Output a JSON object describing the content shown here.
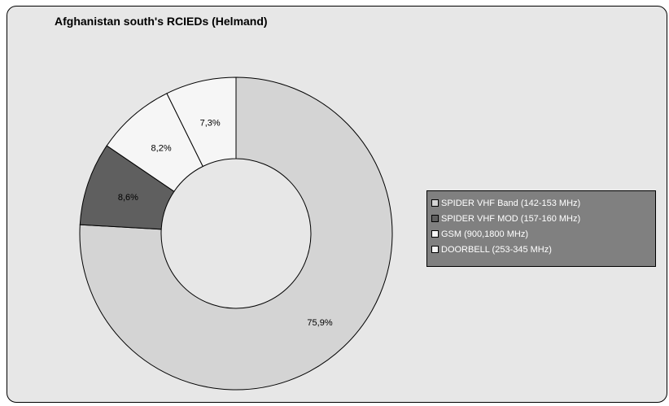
{
  "chart_data": {
    "type": "pie",
    "style": "donut",
    "title": "Afghanistan south's RCIEDs (Helmand)",
    "series": [
      {
        "name": "SPIDER VHF Band (142-153 MHz)",
        "value": 75.9,
        "label": "75,9%",
        "color": "#d4d4d4"
      },
      {
        "name": "SPIDER VHF MOD (157-160 MHz)",
        "value": 8.6,
        "label": "8,6%",
        "color": "#5f5f5f"
      },
      {
        "name": "GSM (900,1800 MHz)",
        "value": 8.2,
        "label": "8,2%",
        "color": "#f6f6f6"
      },
      {
        "name": "DOORBELL (253-345 MHz)",
        "value": 7.3,
        "label": "7,3%",
        "color": "#f6f6f6"
      }
    ],
    "legend": {
      "position": "right"
    },
    "start_angle": "12 o'clock",
    "direction": "clockwise"
  },
  "colors": {
    "background": "#e7e7e7",
    "border": "#000000",
    "legend_background": "#808080",
    "legend_text": "#ffffff"
  }
}
